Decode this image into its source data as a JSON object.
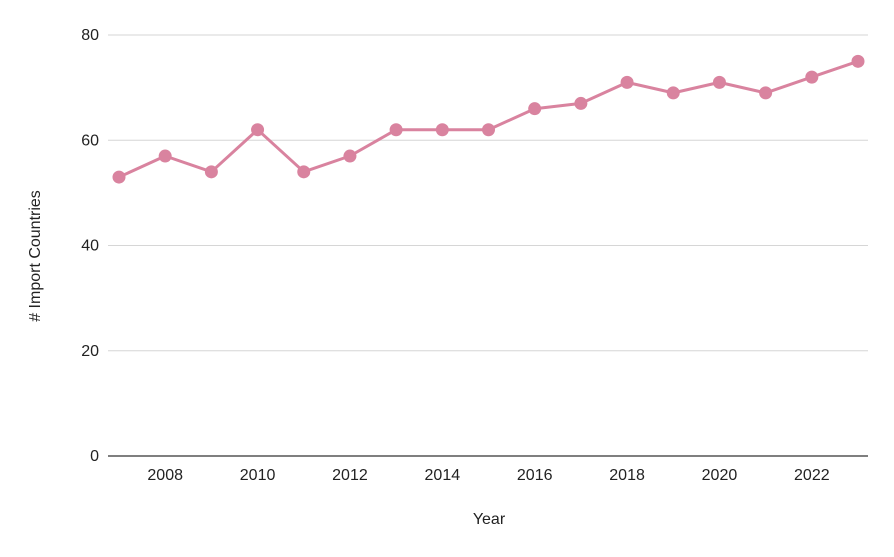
{
  "chart_data": {
    "type": "line",
    "x": [
      2007,
      2008,
      2009,
      2010,
      2011,
      2012,
      2013,
      2014,
      2015,
      2016,
      2017,
      2018,
      2019,
      2020,
      2021,
      2022,
      2023
    ],
    "values": [
      53,
      57,
      54,
      62,
      54,
      57,
      62,
      62,
      62,
      66,
      67,
      71,
      69,
      71,
      69,
      72,
      75
    ],
    "xlabel": "Year",
    "ylabel": "# Import Countries",
    "ylim": [
      0,
      80
    ],
    "y_ticks": [
      0,
      20,
      40,
      60,
      80
    ],
    "x_ticks": [
      2008,
      2010,
      2012,
      2014,
      2016,
      2018,
      2020,
      2022
    ],
    "grid": "horizontal",
    "legend": "none",
    "colors": {
      "series": "#d9839f",
      "gridline": "#d6d6d6",
      "axis": "#333333"
    }
  }
}
